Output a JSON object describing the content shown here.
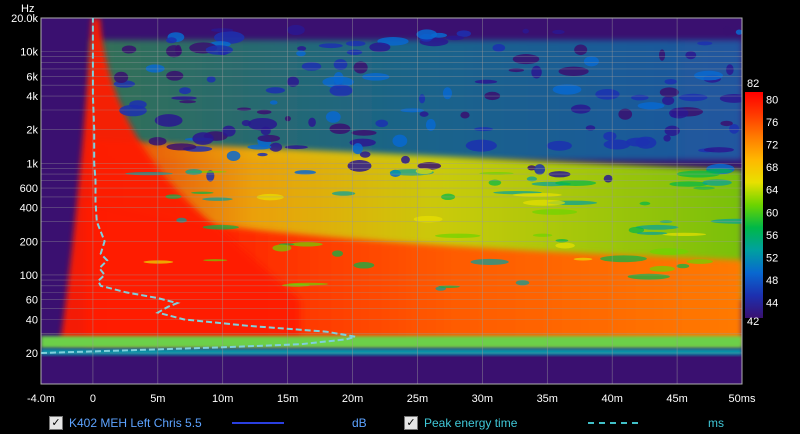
{
  "chart_data": {
    "type": "heatmap",
    "y_unit": "Hz",
    "x_unit": "ms",
    "x_range": [
      -4.0,
      50
    ],
    "y_range_hz": [
      15,
      20000
    ],
    "y_scale": "log",
    "x_ticks": [
      "-4.0m",
      "0",
      "5m",
      "10m",
      "15m",
      "20m",
      "25m",
      "30m",
      "35m",
      "40m",
      "45m",
      "50ms"
    ],
    "x_tick_values": [
      -4,
      0,
      5,
      10,
      15,
      20,
      25,
      30,
      35,
      40,
      45,
      50
    ],
    "y_ticks": [
      "20.0k",
      "10k",
      "6k",
      "4k",
      "2k",
      "1k",
      "600",
      "400",
      "200",
      "100",
      "60",
      "40",
      "20"
    ],
    "y_tick_values": [
      20000,
      10000,
      6000,
      4000,
      2000,
      1000,
      600,
      400,
      200,
      100,
      60,
      40,
      20
    ],
    "colorbar": {
      "min": 42,
      "max": 82,
      "ticks": [
        "82",
        "80",
        "76",
        "72",
        "68",
        "64",
        "60",
        "56",
        "52",
        "48",
        "44",
        "42"
      ],
      "tick_values": [
        82,
        80,
        76,
        72,
        68,
        64,
        60,
        56,
        52,
        48,
        44,
        42
      ],
      "colors": [
        "#ff0000",
        "#ff4a00",
        "#ff9600",
        "#ffd000",
        "#d4e000",
        "#50d000",
        "#00b040",
        "#00a0a0",
        "#0070d0",
        "#1830b8",
        "#2a1890",
        "#3a1070"
      ]
    },
    "series": [
      {
        "name": "Peak energy time",
        "style": "dashed",
        "color": "#7fd0dc",
        "points_ms_hz": [
          [
            -4.0,
            20
          ],
          [
            2,
            21
          ],
          [
            10,
            22.5
          ],
          [
            16,
            24
          ],
          [
            19.5,
            26.5
          ],
          [
            20.2,
            28
          ],
          [
            18,
            31
          ],
          [
            12,
            35
          ],
          [
            7,
            40
          ],
          [
            5,
            46
          ],
          [
            5.8,
            52
          ],
          [
            6.5,
            56
          ],
          [
            5,
            62
          ],
          [
            2.5,
            70
          ],
          [
            0.6,
            80
          ],
          [
            0.4,
            88
          ],
          [
            0.9,
            100
          ],
          [
            0.5,
            115
          ],
          [
            1.1,
            135
          ],
          [
            0.6,
            155
          ],
          [
            0.9,
            200
          ],
          [
            0.3,
            300
          ],
          [
            0.2,
            450
          ],
          [
            0.2,
            700
          ],
          [
            0.1,
            1000
          ],
          [
            0.1,
            2000
          ],
          [
            0.0,
            4000
          ],
          [
            0.0,
            10000
          ],
          [
            0.0,
            20000
          ]
        ]
      }
    ],
    "legend": [
      {
        "label": "K402 MEH Left Chris 5.5",
        "unit": "dB",
        "checked": true,
        "color": "#2a3fe0",
        "line": "solid"
      },
      {
        "label": "Peak energy time",
        "unit": "ms",
        "checked": true,
        "color": "#40c0c8",
        "line": "dashed"
      }
    ]
  }
}
